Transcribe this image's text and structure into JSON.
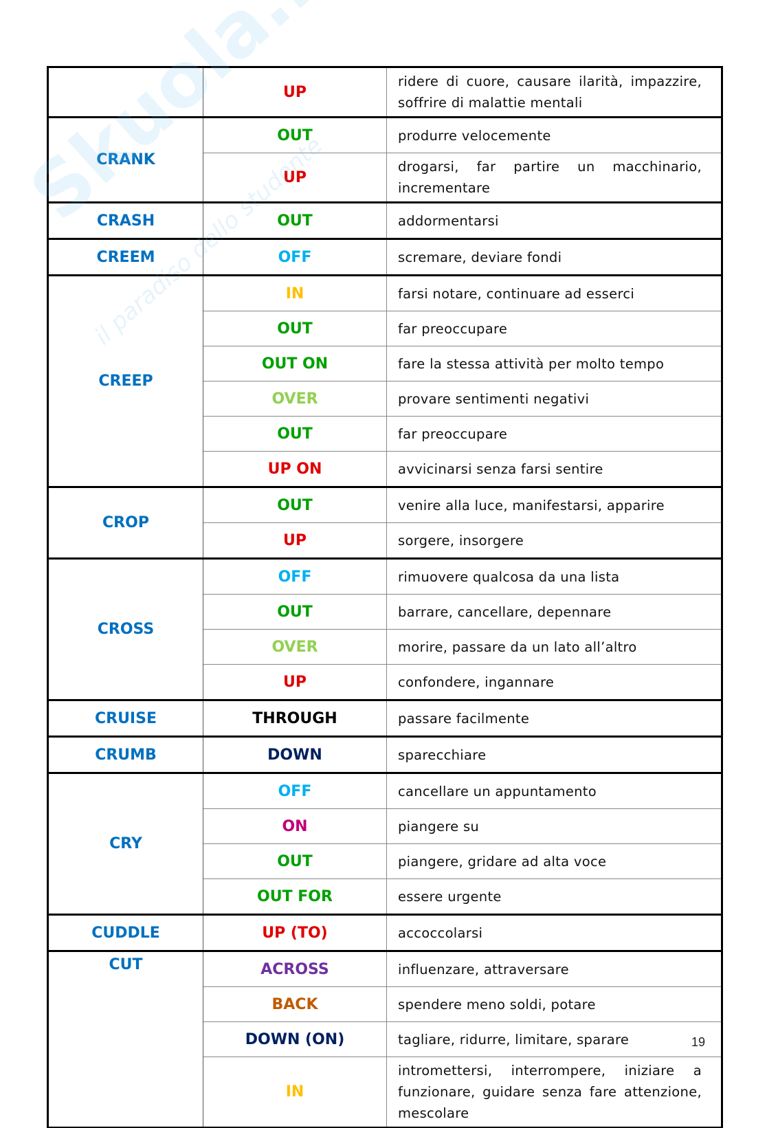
{
  "watermark": {
    "brand": "Skuola.net",
    "tagline": "il paradiso dello studente"
  },
  "table": {
    "groups": [
      {
        "rows": [
          {
            "particle": "UP",
            "color": "#e00000",
            "meaning": "ridere di cuore, causare ilarità, impazzire, soffrire di malattie mentali"
          }
        ]
      },
      {
        "verb": "CRANK",
        "rows": [
          {
            "particle": "OUT",
            "color": "#00a000",
            "meaning": "produrre velocemente"
          },
          {
            "particle": "UP",
            "color": "#e00000",
            "meaning": "drogarsi, far partire un macchinario, incrementare"
          }
        ]
      },
      {
        "verb": "CRASH",
        "rows": [
          {
            "particle": "OUT",
            "color": "#00a000",
            "meaning": "addormentarsi"
          }
        ]
      },
      {
        "verb": "CREEM",
        "rows": [
          {
            "particle": "OFF",
            "color": "#00b0f0",
            "meaning": "scremare, deviare fondi"
          }
        ]
      },
      {
        "verb": "CREEP",
        "rows": [
          {
            "particle": "IN",
            "color": "#ffc000",
            "meaning": "farsi notare, continuare ad esserci"
          },
          {
            "particle": "OUT",
            "color": "#00a000",
            "meaning": "far preoccupare"
          },
          {
            "particle": "OUT ON",
            "color": "#00a000",
            "meaning": "fare la stessa attività per molto tempo"
          },
          {
            "particle": "OVER",
            "color": "#92d050",
            "meaning": "provare sentimenti negativi"
          },
          {
            "particle": "OUT",
            "color": "#00a000",
            "meaning": "far preoccupare"
          },
          {
            "particle": "UP ON",
            "color": "#e00000",
            "meaning": "avvicinarsi senza farsi sentire"
          }
        ]
      },
      {
        "verb": "CROP",
        "rows": [
          {
            "particle": "OUT",
            "color": "#00a000",
            "meaning": "venire alla luce, manifestarsi, apparire"
          },
          {
            "particle": "UP",
            "color": "#e00000",
            "meaning": "sorgere, insorgere"
          }
        ]
      },
      {
        "verb": "CROSS",
        "rows": [
          {
            "particle": "OFF",
            "color": "#00b0f0",
            "meaning": "rimuovere qualcosa da una lista"
          },
          {
            "particle": "OUT",
            "color": "#00a000",
            "meaning": "barrare, cancellare, depennare"
          },
          {
            "particle": "OVER",
            "color": "#92d050",
            "meaning": "morire, passare da un lato all’altro"
          },
          {
            "particle": "UP",
            "color": "#e00000",
            "meaning": "confondere, ingannare"
          }
        ]
      },
      {
        "verb": "CRUISE",
        "rows": [
          {
            "particle": "THROUGH",
            "color": "#000000",
            "meaning": "passare facilmente"
          }
        ]
      },
      {
        "verb": "CRUMB",
        "rows": [
          {
            "particle": "DOWN",
            "color": "#002060",
            "meaning": "sparecchiare"
          }
        ]
      },
      {
        "verb": "CRY",
        "rows": [
          {
            "particle": "OFF",
            "color": "#00b0f0",
            "meaning": "cancellare un appuntamento"
          },
          {
            "particle": "ON",
            "color": "#c0007a",
            "meaning": "piangere su"
          },
          {
            "particle": "OUT",
            "color": "#00a000",
            "meaning": "piangere, gridare ad alta voce"
          },
          {
            "particle": "OUT FOR",
            "color": "#00a000",
            "meaning": "essere urgente"
          }
        ]
      },
      {
        "verb": "CUDDLE",
        "rows": [
          {
            "particle": "UP (TO)",
            "color": "#e00000",
            "meaning": "accoccolarsi"
          }
        ]
      },
      {
        "verb": "CUT",
        "rows": [
          {
            "particle": "ACROSS",
            "color": "#7030a0",
            "meaning": "influenzare, attraversare"
          },
          {
            "particle": "BACK",
            "color": "#c05a00",
            "meaning": "spendere meno soldi, potare"
          },
          {
            "particle": "DOWN (ON)",
            "color": "#002060",
            "meaning": "tagliare, ridurre, limitare, sparare"
          },
          {
            "particle": "IN",
            "color": "#ffc000",
            "meaning": "intromettersi, interrompere, iniziare a funzionare, guidare senza fare attenzione, mescolare"
          }
        ]
      }
    ]
  },
  "footer": {
    "page_number": "19"
  }
}
